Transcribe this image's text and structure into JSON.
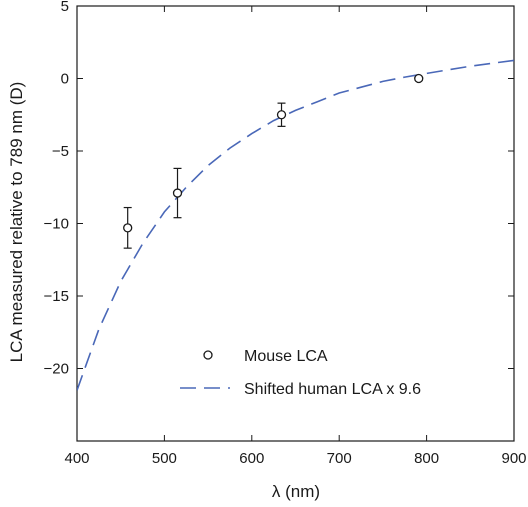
{
  "chart_data": {
    "type": "scatter",
    "title": "",
    "xlabel": "λ (nm)",
    "ylabel": "LCA measured relative to 789 nm (D)",
    "xlim": [
      400,
      900
    ],
    "ylim": [
      -25,
      5
    ],
    "xticks": [
      400,
      500,
      600,
      700,
      800,
      900
    ],
    "yticks": [
      5,
      0,
      -5,
      -10,
      -15,
      -20
    ],
    "grid": false,
    "legend_position": "bottom-right",
    "series": [
      {
        "name": "Mouse LCA",
        "kind": "scatter-errorbar",
        "marker": "open-circle",
        "color": "#1a1a1a",
        "x": [
          458,
          515,
          634,
          791
        ],
        "y": [
          -10.3,
          -7.9,
          -2.5,
          0.0
        ],
        "err": [
          1.4,
          1.7,
          0.8,
          0.0
        ]
      },
      {
        "name": "Shifted human LCA x 9.6",
        "kind": "line",
        "style": "dashed",
        "color": "#4a68b8",
        "x": [
          400,
          425,
          450,
          475,
          500,
          525,
          550,
          575,
          600,
          625,
          650,
          675,
          700,
          725,
          750,
          775,
          800,
          825,
          850,
          875,
          900
        ],
        "y": [
          -21.5,
          -17.3,
          -14.0,
          -11.4,
          -9.2,
          -7.5,
          -6.0,
          -4.8,
          -3.8,
          -2.9,
          -2.2,
          -1.6,
          -1.0,
          -0.6,
          -0.2,
          0.1,
          0.35,
          0.6,
          0.85,
          1.05,
          1.25
        ]
      }
    ]
  }
}
